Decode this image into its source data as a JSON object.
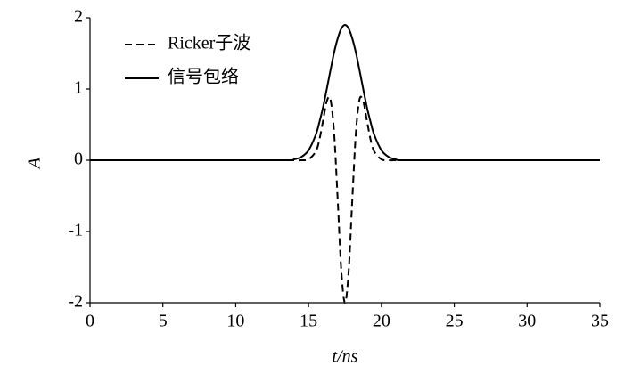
{
  "chart_data": {
    "type": "line",
    "xlabel": "t/ns",
    "ylabel": "A",
    "x": [
      0,
      5,
      10,
      13.5,
      14,
      14.5,
      15,
      15.5,
      15.75,
      16,
      16.25,
      16.5,
      16.75,
      17,
      17.25,
      17.5,
      17.75,
      18,
      18.25,
      18.5,
      18.75,
      19,
      19.25,
      19.5,
      20,
      20.5,
      21,
      21.5,
      25,
      30,
      35
    ],
    "series": [
      {
        "name": "Ricker子波",
        "color": "#000000",
        "style": "dashed",
        "values": [
          0,
          0,
          0,
          0,
          0,
          0,
          0.013,
          0.125,
          0.296,
          0.563,
          0.829,
          0.856,
          0.392,
          -0.557,
          -1.564,
          -2,
          -1.564,
          -0.557,
          0.392,
          0.856,
          0.829,
          0.563,
          0.296,
          0.125,
          0.013,
          0,
          0,
          0,
          0,
          0,
          0
        ]
      },
      {
        "name": "信号包络",
        "color": "#000000",
        "style": "solid",
        "values": [
          0,
          0,
          0,
          0,
          0.012,
          0.046,
          0.14,
          0.36,
          0.54,
          0.75,
          1.0,
          1.26,
          1.51,
          1.71,
          1.85,
          1.9,
          1.85,
          1.71,
          1.51,
          1.26,
          1.0,
          0.75,
          0.54,
          0.36,
          0.14,
          0.046,
          0.012,
          0,
          0,
          0,
          0
        ]
      }
    ],
    "xlim": [
      0,
      35
    ],
    "xticks": [
      0,
      5,
      10,
      15,
      20,
      25,
      30,
      35
    ],
    "ylim": [
      -2,
      2
    ],
    "yticks": [
      -2,
      -1,
      0,
      1,
      2
    ],
    "legend": "upper-left",
    "grid": false
  }
}
